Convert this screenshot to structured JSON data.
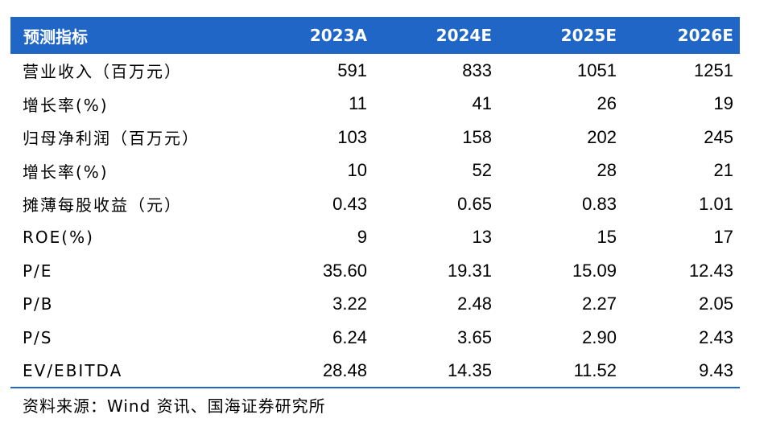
{
  "table": {
    "headers": [
      "预测指标",
      "2023A",
      "2024E",
      "2025E",
      "2026E"
    ],
    "rows": [
      {
        "label": "营业收入（百万元）",
        "values": [
          "591",
          "833",
          "1051",
          "1251"
        ]
      },
      {
        "label": "增长率(%)",
        "values": [
          "11",
          "41",
          "26",
          "19"
        ]
      },
      {
        "label": "归母净利润（百万元）",
        "values": [
          "103",
          "158",
          "202",
          "245"
        ]
      },
      {
        "label": "增长率(%)",
        "values": [
          "10",
          "52",
          "28",
          "21"
        ]
      },
      {
        "label": "摊薄每股收益（元）",
        "values": [
          "0.43",
          "0.65",
          "0.83",
          "1.01"
        ]
      },
      {
        "label": "ROE(%)",
        "values": [
          "9",
          "13",
          "15",
          "17"
        ]
      },
      {
        "label": "P/E",
        "values": [
          "35.60",
          "19.31",
          "15.09",
          "12.43"
        ]
      },
      {
        "label": "P/B",
        "values": [
          "3.22",
          "2.48",
          "2.27",
          "2.05"
        ]
      },
      {
        "label": "P/S",
        "values": [
          "6.24",
          "3.65",
          "2.90",
          "2.43"
        ]
      },
      {
        "label": "EV/EBITDA",
        "values": [
          "28.48",
          "14.35",
          "11.52",
          "9.43"
        ]
      }
    ]
  },
  "source": "资料来源：Wind 资讯、国海证券研究所",
  "colors": {
    "header_bg": "#1f66c6",
    "header_text": "#ffffff"
  }
}
